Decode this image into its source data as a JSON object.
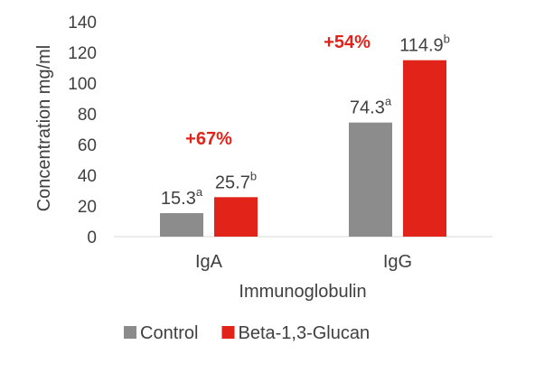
{
  "chart_data": {
    "type": "bar",
    "categories": [
      "IgA",
      "IgG"
    ],
    "series": [
      {
        "name": "Control",
        "color": "#8c8c8c",
        "values": [
          15.3,
          74.3
        ],
        "labels": [
          {
            "value": "15.3",
            "sup": "a"
          },
          {
            "value": "74.3",
            "sup": "a"
          }
        ]
      },
      {
        "name": "Beta-1,3-Glucan",
        "color": "#e2231a",
        "values": [
          25.7,
          114.9
        ],
        "labels": [
          {
            "value": "25.7",
            "sup": "b"
          },
          {
            "value": "114.9",
            "sup": "b"
          }
        ]
      }
    ],
    "annotations": [
      {
        "text": "+67%",
        "category": "IgA",
        "color": "#e2231a"
      },
      {
        "text": "+54%",
        "category": "IgG",
        "color": "#e2231a"
      }
    ],
    "title": "",
    "xlabel": "Immunoglobulin",
    "ylabel": "Concentration  mg/ml",
    "ylim": [
      0,
      140
    ],
    "yticks": [
      0,
      20,
      40,
      60,
      80,
      100,
      120,
      140
    ],
    "grid": false,
    "legend_position": "bottom"
  }
}
